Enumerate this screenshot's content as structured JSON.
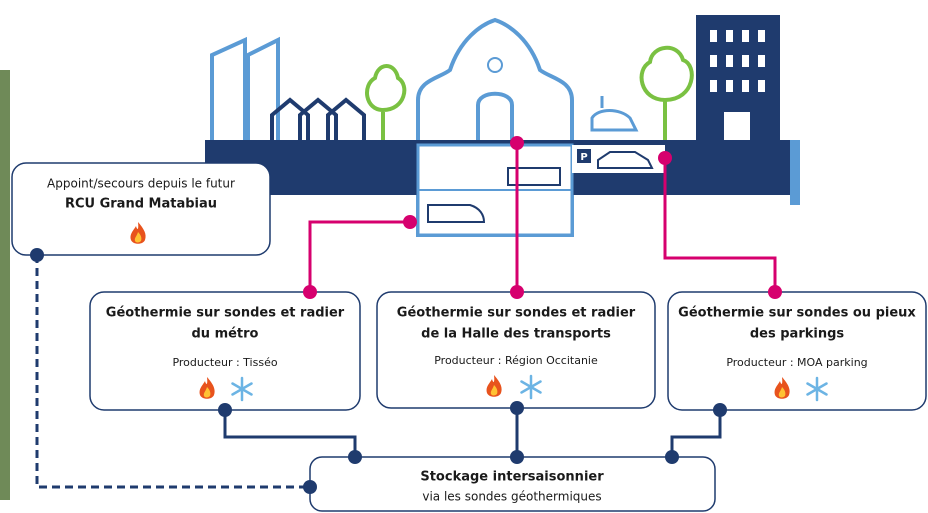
{
  "parking_sign": "P",
  "nodes": [
    {
      "title": [
        "Appoint/secours depuis le futur",
        "RCU Grand Matabiau"
      ]
    },
    {
      "title": [
        "Géothermie sur sondes et radier",
        "du métro"
      ],
      "producer": "Producteur : Tisséo"
    },
    {
      "title": [
        "Géothermie sur sondes et radier",
        "de la Halle des transports"
      ],
      "producer": "Producteur : Région Occitanie"
    },
    {
      "title": [
        "Géothermie sur sondes ou pieux",
        "des parkings"
      ],
      "producer": "Producteur : MOA parking"
    },
    {
      "title": [
        "Stockage intersaisonnier",
        "via les sondes géothermiques"
      ]
    }
  ]
}
